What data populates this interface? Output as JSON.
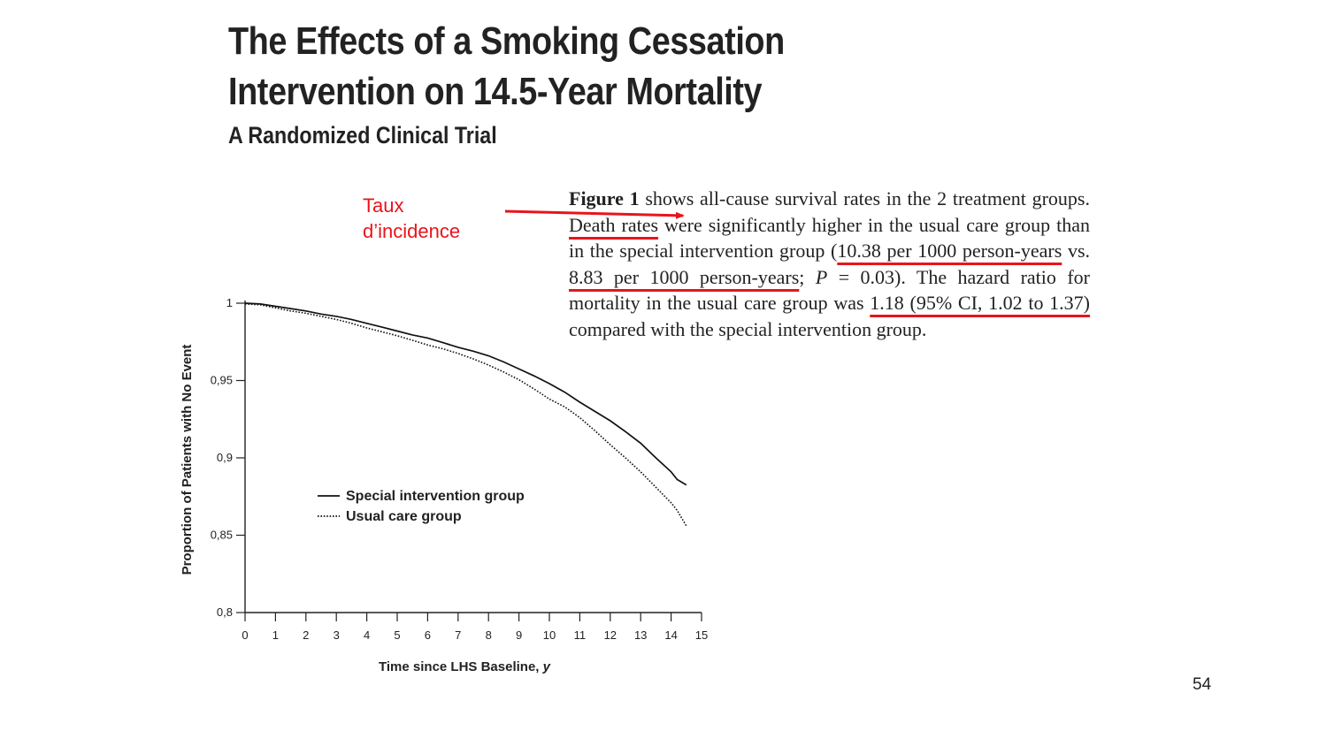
{
  "slide": {
    "title": "The Effects of a Smoking Cessation Intervention on 14.5-Year Mortality",
    "subtitle": "A Randomized Clinical Trial",
    "annotation": {
      "line1": "Taux",
      "line2": "d’incidence"
    },
    "page_number": "54",
    "accent_color": "#e8141b"
  },
  "excerpt": {
    "figure_ref": "Figure 1",
    "seg1": " shows all-cause survival rates in the 2 treatment groups. ",
    "death_rates": "Death rates",
    "seg2": " were significantly higher in the usual care group than in the special intervention group (",
    "rate_usual": "10.38 per 1000 person-years",
    "seg3": " vs. ",
    "rate_special": "8.83 per 1000 person-years",
    "seg4": "; ",
    "p_label": "P",
    "seg5": " =  0.03). The hazard ratio for mortality in the usual care group was ",
    "hazard_ratio": "1.18 (95% CI, 1.02 to 1.37)",
    "seg6": " compared with the special intervention group."
  },
  "chart_data": {
    "type": "line",
    "title": "",
    "xlabel": "Time since LHS Baseline, y",
    "ylabel": "Proportion of Patients with No Event",
    "xlim": [
      0,
      15
    ],
    "ylim": [
      0.8,
      1
    ],
    "x_ticks": [
      "0",
      "1",
      "2",
      "3",
      "4",
      "5",
      "6",
      "7",
      "8",
      "9",
      "10",
      "11",
      "12",
      "13",
      "14",
      "15"
    ],
    "y_ticks": [
      {
        "value": 1,
        "label": "1"
      },
      {
        "value": 0.95,
        "label": "0,95"
      },
      {
        "value": 0.9,
        "label": "0,9"
      },
      {
        "value": 0.85,
        "label": "0,85"
      },
      {
        "value": 0.8,
        "label": "0,8"
      }
    ],
    "legend_position": "lower-left",
    "series": [
      {
        "name": "Special intervention group",
        "style": "solid",
        "x": [
          0,
          0.5,
          1,
          1.5,
          2,
          2.5,
          3,
          3.5,
          4,
          4.5,
          5,
          5.5,
          6,
          6.5,
          7,
          7.5,
          8,
          8.5,
          9,
          9.5,
          10,
          10.5,
          11,
          11.5,
          12,
          12.5,
          13,
          13.5,
          14,
          14.2,
          14.5
        ],
        "y": [
          1.0,
          0.9995,
          0.998,
          0.9965,
          0.995,
          0.993,
          0.9915,
          0.9895,
          0.987,
          0.9845,
          0.982,
          0.9795,
          0.9775,
          0.9745,
          0.9715,
          0.969,
          0.966,
          0.962,
          0.9575,
          0.953,
          0.948,
          0.9425,
          0.936,
          0.93,
          0.924,
          0.917,
          0.9095,
          0.9,
          0.891,
          0.886,
          0.8825
        ]
      },
      {
        "name": "Usual care group",
        "style": "dotted",
        "x": [
          0,
          0.5,
          1,
          1.5,
          2,
          2.5,
          3,
          3.5,
          4,
          4.5,
          5,
          5.5,
          6,
          6.5,
          7,
          7.5,
          8,
          8.5,
          9,
          9.5,
          10,
          10.5,
          11,
          11.5,
          12,
          12.5,
          13,
          13.5,
          14,
          14.2,
          14.5
        ],
        "y": [
          0.9995,
          0.999,
          0.997,
          0.995,
          0.9935,
          0.9915,
          0.9895,
          0.987,
          0.984,
          0.9815,
          0.979,
          0.976,
          0.973,
          0.9705,
          0.9675,
          0.964,
          0.96,
          0.9555,
          0.9505,
          0.9445,
          0.938,
          0.933,
          0.926,
          0.9175,
          0.9085,
          0.9,
          0.891,
          0.881,
          0.871,
          0.866,
          0.856
        ]
      }
    ]
  }
}
